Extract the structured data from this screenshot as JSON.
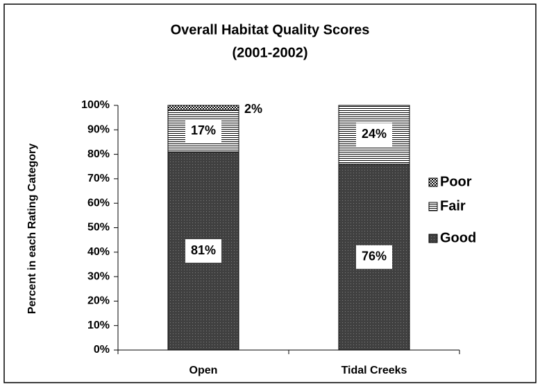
{
  "chart_data": {
    "type": "stacked_bar",
    "title": "Overall Habitat Quality Scores",
    "subtitle": "(2001-2002)",
    "y_label": "Percent in each Rating Category",
    "categories": [
      "Open",
      "Tidal Creeks"
    ],
    "series": [
      {
        "name": "Good",
        "color": "#404040",
        "values": [
          81,
          76
        ],
        "value_labels": [
          "81%",
          "76%"
        ]
      },
      {
        "name": "Fair",
        "color": "#ffffff",
        "values": [
          17,
          24
        ],
        "value_labels": [
          "17%",
          "24%"
        ]
      },
      {
        "name": "Poor",
        "color": "#ffffff",
        "values": [
          2,
          null
        ],
        "value_labels": [
          "2%",
          null
        ]
      }
    ],
    "ylim": [
      0,
      100
    ],
    "yticks": [
      {
        "value": 0,
        "label": "0%"
      },
      {
        "value": 10,
        "label": "10%"
      },
      {
        "value": 20,
        "label": "20%"
      },
      {
        "value": 30,
        "label": "30%"
      },
      {
        "value": 40,
        "label": "40%"
      },
      {
        "value": 50,
        "label": "50%"
      },
      {
        "value": 60,
        "label": "60%"
      },
      {
        "value": 70,
        "label": "70%"
      },
      {
        "value": 80,
        "label": "80%"
      },
      {
        "value": 90,
        "label": "90%"
      },
      {
        "value": 100,
        "label": "100%"
      }
    ],
    "legend": "right"
  }
}
